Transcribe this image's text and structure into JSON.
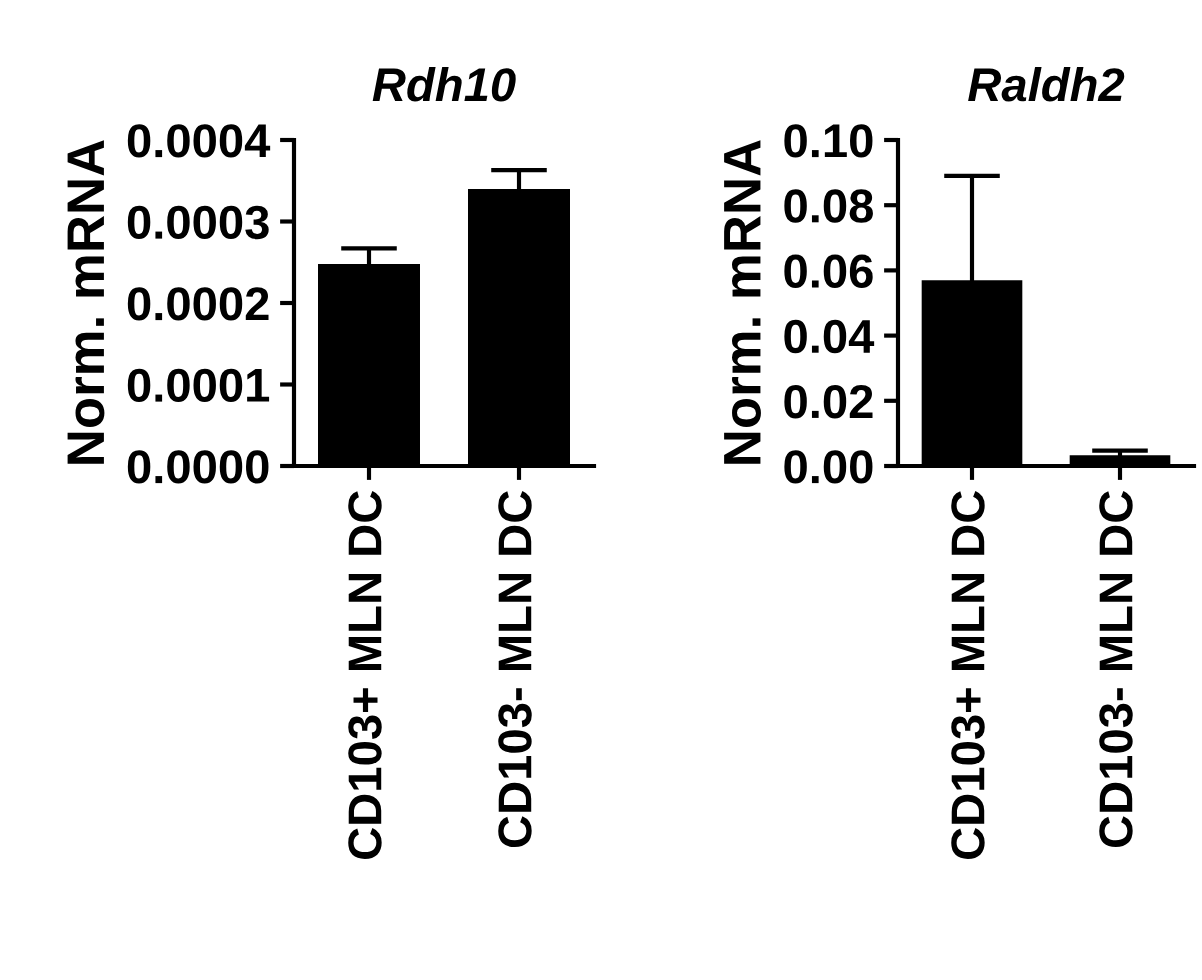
{
  "chart_data": [
    {
      "type": "bar",
      "title": "Rdh10",
      "ylabel": "Norm. mRNA",
      "categories": [
        "CD103+ MLN DC",
        "CD103- MLN DC"
      ],
      "values": [
        0.000248,
        0.00034
      ],
      "color": "#000000",
      "errors": [
        1.9e-05,
        2.3e-05
      ],
      "ylim": [
        0,
        0.0004
      ],
      "yticks": [
        {
          "value": 0,
          "label": "0.0000"
        },
        {
          "value": 0.0001,
          "label": "0.0001"
        },
        {
          "value": 0.0002,
          "label": "0.0002"
        },
        {
          "value": 0.0003,
          "label": "0.0003"
        },
        {
          "value": 0.0004,
          "label": "0.0004"
        }
      ]
    },
    {
      "type": "bar",
      "title": "Raldh2",
      "ylabel": "Norm. mRNA",
      "categories": [
        "CD103+ MLN DC",
        "CD103- MLN DC"
      ],
      "values": [
        0.057,
        0.0033
      ],
      "color": "#000000",
      "errors": [
        0.032,
        0.0014
      ],
      "ylim": [
        0,
        0.1
      ],
      "yticks": [
        {
          "value": 0,
          "label": "0.00"
        },
        {
          "value": 0.02,
          "label": "0.02"
        },
        {
          "value": 0.04,
          "label": "0.04"
        },
        {
          "value": 0.06,
          "label": "0.06"
        },
        {
          "value": 0.08,
          "label": "0.08"
        },
        {
          "value": 0.1,
          "label": "0.10"
        }
      ]
    }
  ]
}
